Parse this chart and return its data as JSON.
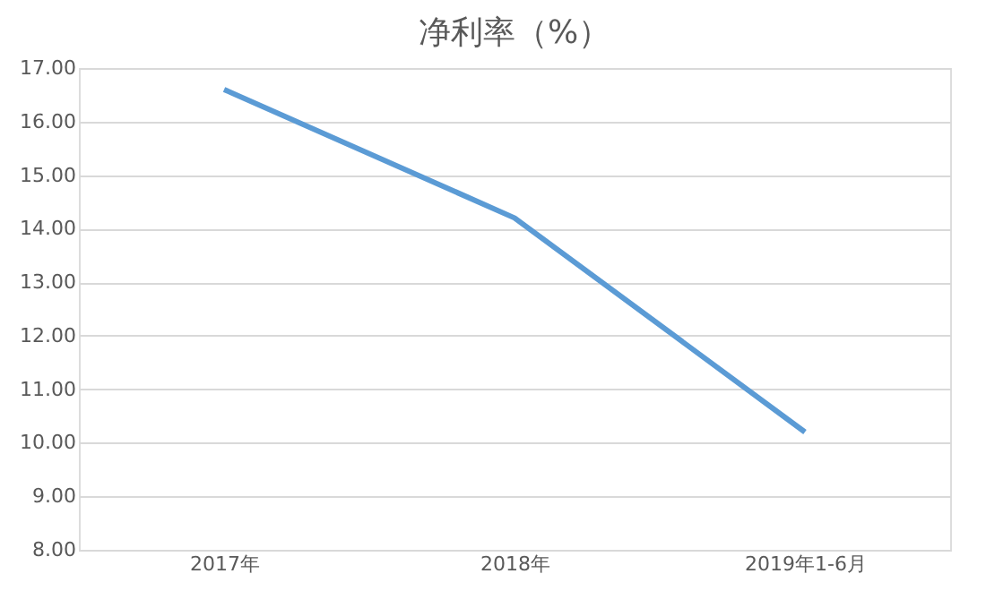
{
  "chart_data": {
    "type": "line",
    "title": "净利率（%）",
    "categories": [
      "2017年",
      "2018年",
      "2019年1-6月"
    ],
    "series": [
      {
        "color": "#5b9bd5",
        "values": [
          16.6,
          14.2,
          10.2
        ]
      }
    ],
    "ylim": [
      8,
      17
    ],
    "yticks": [
      {
        "value": 8,
        "label": "8.00"
      },
      {
        "value": 9,
        "label": "9.00"
      },
      {
        "value": 10,
        "label": "10.00"
      },
      {
        "value": 11,
        "label": "11.00"
      },
      {
        "value": 12,
        "label": "12.00"
      },
      {
        "value": 13,
        "label": "13.00"
      },
      {
        "value": 14,
        "label": "14.00"
      },
      {
        "value": 15,
        "label": "15.00"
      },
      {
        "value": 16,
        "label": "16.00"
      },
      {
        "value": 17,
        "label": "17.00"
      }
    ],
    "grid": "y",
    "marker": "none",
    "line_style": "solid"
  }
}
